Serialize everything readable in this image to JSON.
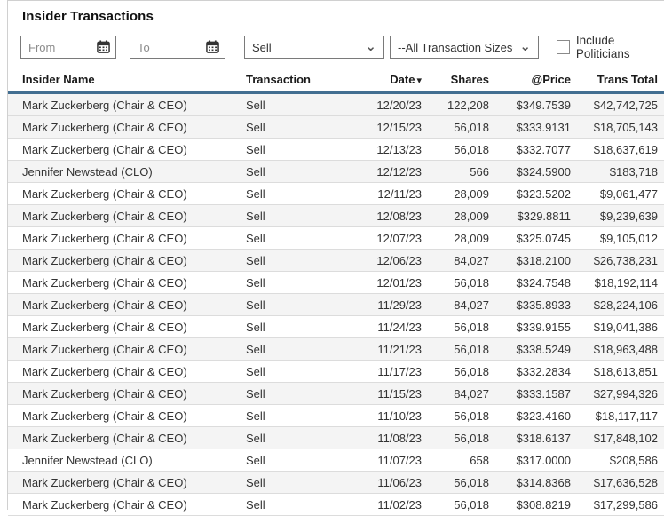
{
  "page": {
    "title": "Insider Transactions"
  },
  "filters": {
    "from_placeholder": "From",
    "to_placeholder": "To",
    "action_select_value": "Sell",
    "size_select_value": "--All Transaction Sizes--",
    "include_politicians_label": "Include Politicians",
    "include_politicians_checked": false
  },
  "icons": {
    "calendar": "calendar-icon",
    "select_chevron": "chevron-down-icon",
    "sort_desc": "sort-descending-icon"
  },
  "colors": {
    "header_underline": "#426e91",
    "row_stripe": "#f4f4f4",
    "border": "#dcdcdc"
  },
  "table": {
    "columns": {
      "name": "Insider Name",
      "transaction": "Transaction",
      "date": "Date",
      "shares": "Shares",
      "price": "@Price",
      "total": "Trans Total"
    },
    "sort_column": "date",
    "sort_direction": "desc",
    "row_keys": [
      "name",
      "transaction",
      "date",
      "shares",
      "price",
      "total"
    ],
    "rows": [
      {
        "name": "Mark Zuckerberg (Chair & CEO)",
        "transaction": "Sell",
        "date": "12/20/23",
        "shares": "122,208",
        "price": "$349.7539",
        "total": "$42,742,725"
      },
      {
        "name": "Mark Zuckerberg (Chair & CEO)",
        "transaction": "Sell",
        "date": "12/15/23",
        "shares": "56,018",
        "price": "$333.9131",
        "total": "$18,705,143"
      },
      {
        "name": "Mark Zuckerberg (Chair & CEO)",
        "transaction": "Sell",
        "date": "12/13/23",
        "shares": "56,018",
        "price": "$332.7077",
        "total": "$18,637,619"
      },
      {
        "name": "Jennifer Newstead (CLO)",
        "transaction": "Sell",
        "date": "12/12/23",
        "shares": "566",
        "price": "$324.5900",
        "total": "$183,718"
      },
      {
        "name": "Mark Zuckerberg (Chair & CEO)",
        "transaction": "Sell",
        "date": "12/11/23",
        "shares": "28,009",
        "price": "$323.5202",
        "total": "$9,061,477"
      },
      {
        "name": "Mark Zuckerberg (Chair & CEO)",
        "transaction": "Sell",
        "date": "12/08/23",
        "shares": "28,009",
        "price": "$329.8811",
        "total": "$9,239,639"
      },
      {
        "name": "Mark Zuckerberg (Chair & CEO)",
        "transaction": "Sell",
        "date": "12/07/23",
        "shares": "28,009",
        "price": "$325.0745",
        "total": "$9,105,012"
      },
      {
        "name": "Mark Zuckerberg (Chair & CEO)",
        "transaction": "Sell",
        "date": "12/06/23",
        "shares": "84,027",
        "price": "$318.2100",
        "total": "$26,738,231"
      },
      {
        "name": "Mark Zuckerberg (Chair & CEO)",
        "transaction": "Sell",
        "date": "12/01/23",
        "shares": "56,018",
        "price": "$324.7548",
        "total": "$18,192,114"
      },
      {
        "name": "Mark Zuckerberg (Chair & CEO)",
        "transaction": "Sell",
        "date": "11/29/23",
        "shares": "84,027",
        "price": "$335.8933",
        "total": "$28,224,106"
      },
      {
        "name": "Mark Zuckerberg (Chair & CEO)",
        "transaction": "Sell",
        "date": "11/24/23",
        "shares": "56,018",
        "price": "$339.9155",
        "total": "$19,041,386"
      },
      {
        "name": "Mark Zuckerberg (Chair & CEO)",
        "transaction": "Sell",
        "date": "11/21/23",
        "shares": "56,018",
        "price": "$338.5249",
        "total": "$18,963,488"
      },
      {
        "name": "Mark Zuckerberg (Chair & CEO)",
        "transaction": "Sell",
        "date": "11/17/23",
        "shares": "56,018",
        "price": "$332.2834",
        "total": "$18,613,851"
      },
      {
        "name": "Mark Zuckerberg (Chair & CEO)",
        "transaction": "Sell",
        "date": "11/15/23",
        "shares": "84,027",
        "price": "$333.1587",
        "total": "$27,994,326"
      },
      {
        "name": "Mark Zuckerberg (Chair & CEO)",
        "transaction": "Sell",
        "date": "11/10/23",
        "shares": "56,018",
        "price": "$323.4160",
        "total": "$18,117,117"
      },
      {
        "name": "Mark Zuckerberg (Chair & CEO)",
        "transaction": "Sell",
        "date": "11/08/23",
        "shares": "56,018",
        "price": "$318.6137",
        "total": "$17,848,102"
      },
      {
        "name": "Jennifer Newstead (CLO)",
        "transaction": "Sell",
        "date": "11/07/23",
        "shares": "658",
        "price": "$317.0000",
        "total": "$208,586"
      },
      {
        "name": "Mark Zuckerberg (Chair & CEO)",
        "transaction": "Sell",
        "date": "11/06/23",
        "shares": "56,018",
        "price": "$314.8368",
        "total": "$17,636,528"
      },
      {
        "name": "Mark Zuckerberg (Chair & CEO)",
        "transaction": "Sell",
        "date": "11/02/23",
        "shares": "56,018",
        "price": "$308.8219",
        "total": "$17,299,586"
      }
    ]
  }
}
